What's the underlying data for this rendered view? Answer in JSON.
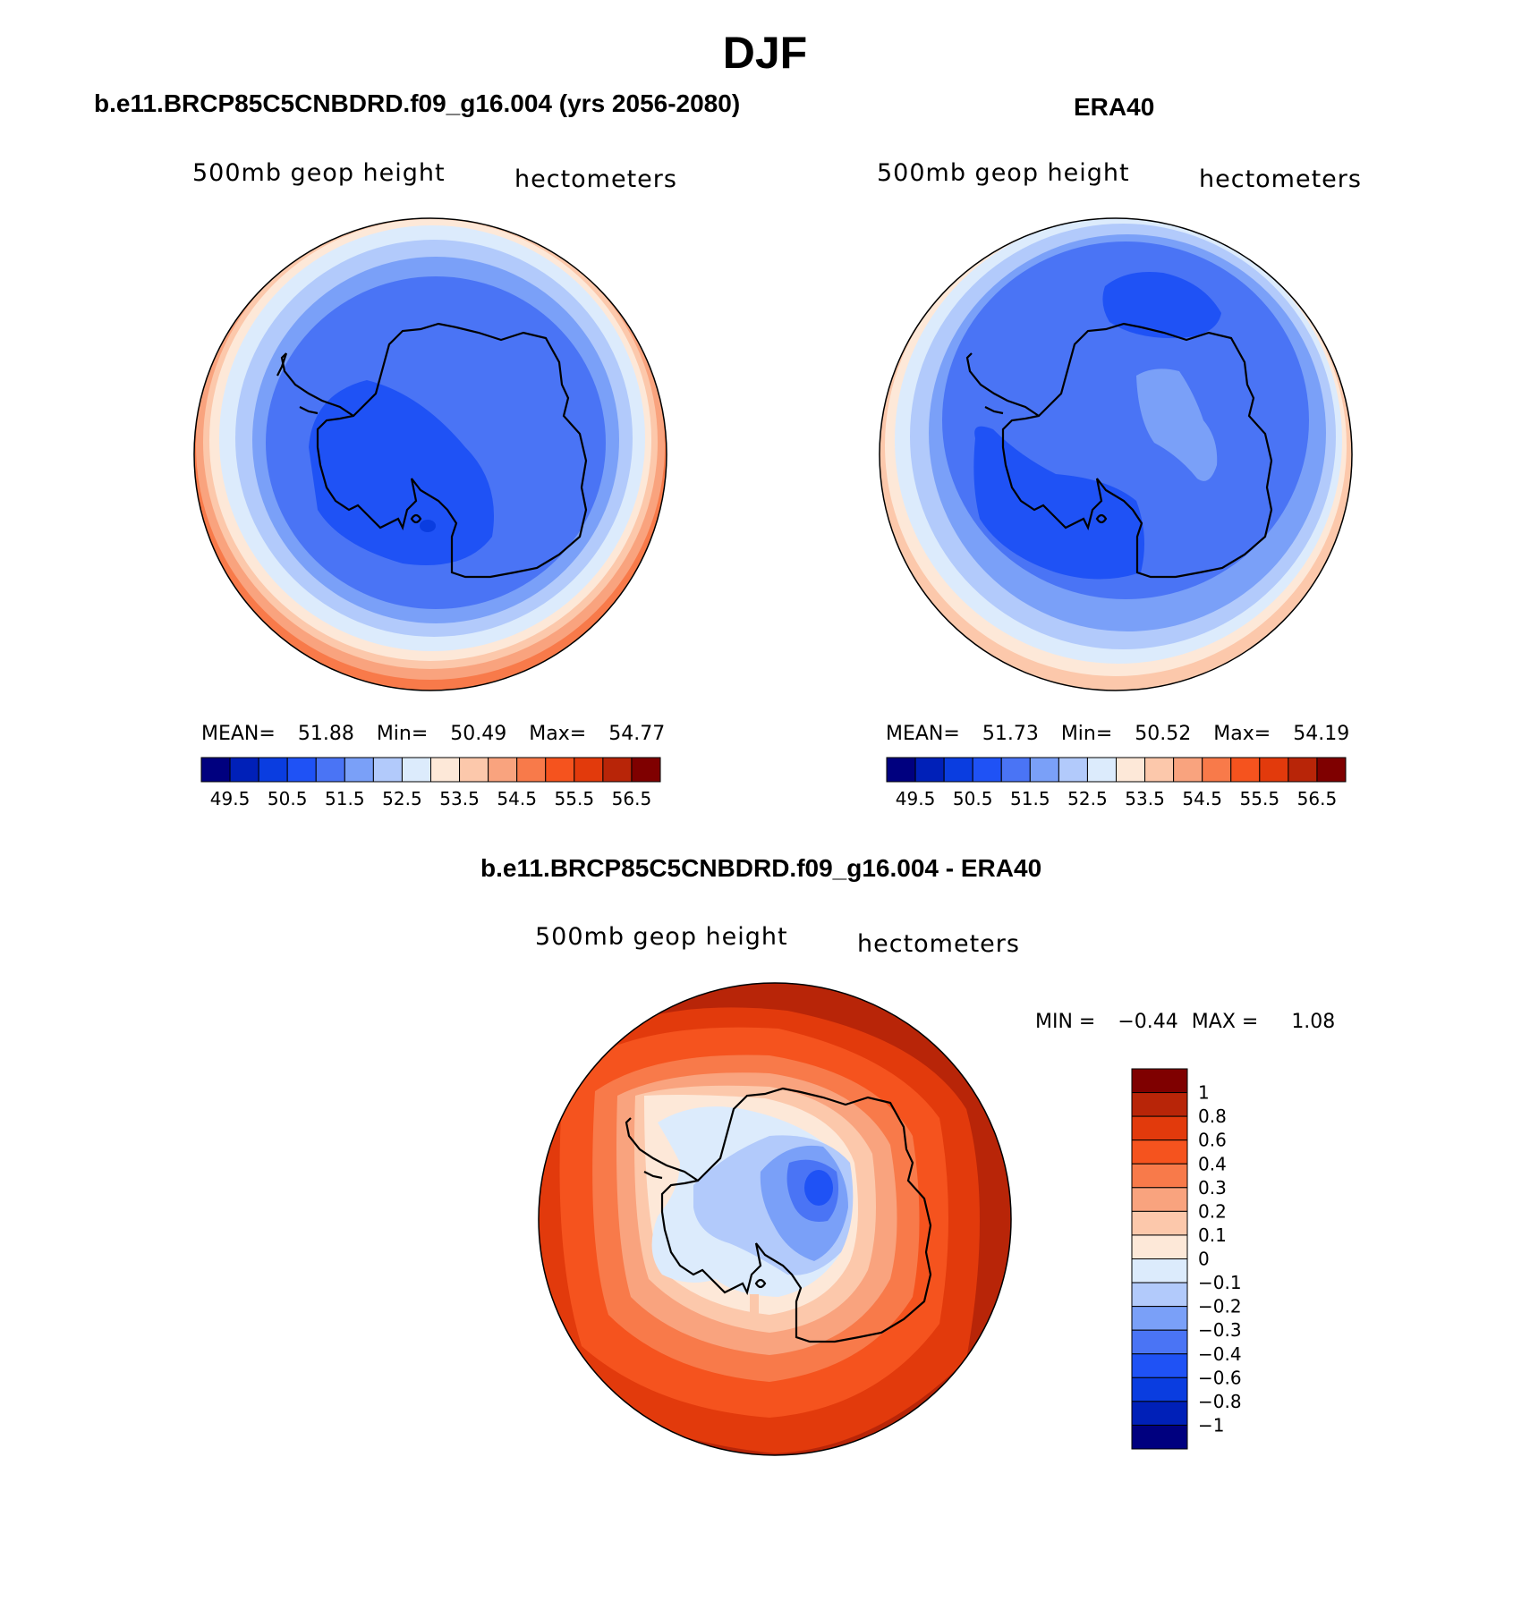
{
  "title": "DJF",
  "colors": {
    "abs_scale": [
      "#00007f",
      "#0020b8",
      "#0a3de0",
      "#1f52f5",
      "#4a74f5",
      "#7aa0f8",
      "#b2cafb",
      "#dcebfc",
      "#fde8d8",
      "#fcc8ab",
      "#f9a37e",
      "#f87a4a",
      "#f5531e",
      "#e23a0c",
      "#b82508",
      "#7f0000"
    ],
    "diff_scale": [
      "#00007f",
      "#0020b8",
      "#0a3de0",
      "#1f52f5",
      "#4a74f5",
      "#7aa0f8",
      "#b2cafb",
      "#dcebfc",
      "#fde8d8",
      "#fcc8ab",
      "#f9a37e",
      "#f87a4a",
      "#f5531e",
      "#e23a0c",
      "#b82508",
      "#7f0000"
    ]
  },
  "panels": [
    {
      "title": "b.e11.BRCP85C5CNBDRD.f09_g16.004 (yrs 2056-2080)",
      "left_label": "500mb geop height",
      "right_label": "hectometers",
      "stats": {
        "mean_label": "MEAN=",
        "mean": "51.88",
        "min_label": "Min=",
        "min": "50.49",
        "max_label": "Max=",
        "max": "54.77"
      },
      "colorbar_labels": [
        "49.5",
        "50.5",
        "51.5",
        "52.5",
        "53.5",
        "54.5",
        "55.5",
        "56.5"
      ]
    },
    {
      "title": "ERA40",
      "left_label": "500mb geop height",
      "right_label": "hectometers",
      "stats": {
        "mean_label": "MEAN=",
        "mean": "51.73",
        "min_label": "Min=",
        "min": "50.52",
        "max_label": "Max=",
        "max": "54.19"
      },
      "colorbar_labels": [
        "49.5",
        "50.5",
        "51.5",
        "52.5",
        "53.5",
        "54.5",
        "55.5",
        "56.5"
      ]
    },
    {
      "title": "b.e11.BRCP85C5CNBDRD.f09_g16.004 - ERA40",
      "left_label": "500mb geop height",
      "right_label": "hectometers",
      "stats": {
        "min_label": "MIN =",
        "min": "−0.44",
        "max_label": "MAX =",
        "max": "1.08"
      },
      "colorbar_labels": [
        "1",
        "0.8",
        "0.6",
        "0.4",
        "0.3",
        "0.2",
        "0.1",
        "0",
        "−0.1",
        "−0.2",
        "−0.3",
        "−0.4",
        "−0.6",
        "−0.8",
        "−1"
      ]
    }
  ]
}
